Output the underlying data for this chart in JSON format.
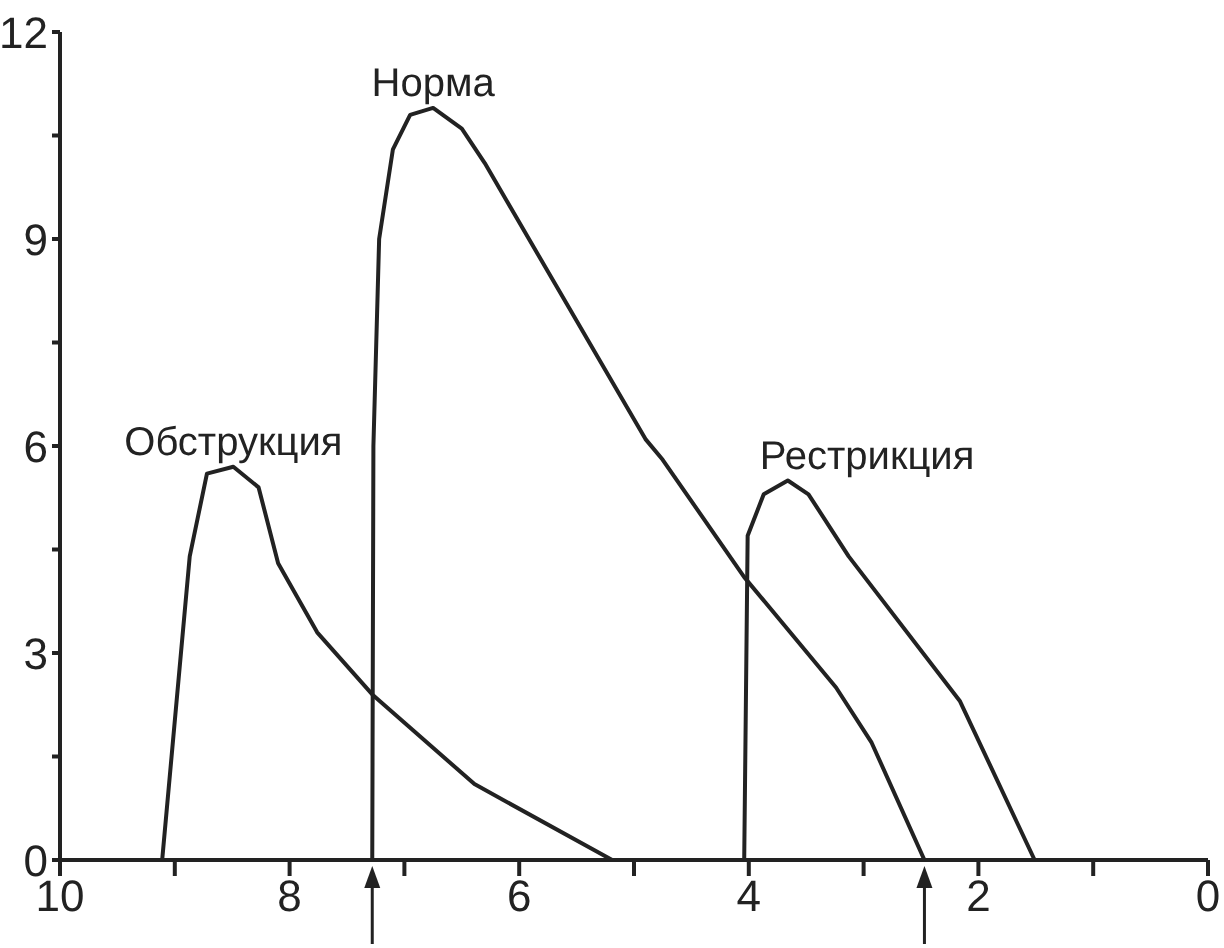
{
  "chart_data": {
    "type": "line",
    "xlim": [
      10,
      0
    ],
    "xticks": [
      10,
      {
        "value": 9,
        "label": null
      },
      8,
      {
        "value": 7,
        "label": null
      },
      6,
      {
        "value": 5,
        "label": null
      },
      4,
      {
        "value": 3,
        "label": null
      },
      2,
      {
        "value": 1,
        "label": null
      },
      0
    ],
    "ylim": [
      0,
      12
    ],
    "yticks": [
      0,
      {
        "value": 1.5,
        "label": null
      },
      3,
      {
        "value": 4.5,
        "label": null
      },
      6,
      {
        "value": 7.5,
        "label": null
      },
      9,
      {
        "value": 10.5,
        "label": null
      },
      12
    ],
    "grid": false,
    "legend": false,
    "marker": "none",
    "line_style": "solid",
    "series": [
      {
        "name": "Обструкция",
        "color": "#222222",
        "x": [
          9.11,
          8.87,
          8.72,
          8.49,
          8.27,
          8.1,
          7.76,
          7.28,
          6.39,
          5.19
        ],
        "values": [
          0,
          4.4,
          5.6,
          5.7,
          5.4,
          4.3,
          3.3,
          2.4,
          1.1,
          0
        ]
      },
      {
        "name": "Норма",
        "color": "#222222",
        "x": [
          7.28,
          7.27,
          7.22,
          7.1,
          6.95,
          6.75,
          6.5,
          6.3,
          5.67,
          4.9,
          4.75,
          4.04,
          3.24,
          2.93,
          2.47
        ],
        "values": [
          0,
          6,
          9,
          10.3,
          10.8,
          10.9,
          10.6,
          10.1,
          8.3,
          6.1,
          5.8,
          4.1,
          2.5,
          1.7,
          0
        ]
      },
      {
        "name": "Рестрикция",
        "color": "#222222",
        "x": [
          4.04,
          4.01,
          3.87,
          3.66,
          3.48,
          3.13,
          2.16,
          1.51
        ],
        "values": [
          0,
          4.7,
          5.3,
          5.5,
          5.3,
          4.4,
          2.3,
          0
        ]
      }
    ]
  }
}
